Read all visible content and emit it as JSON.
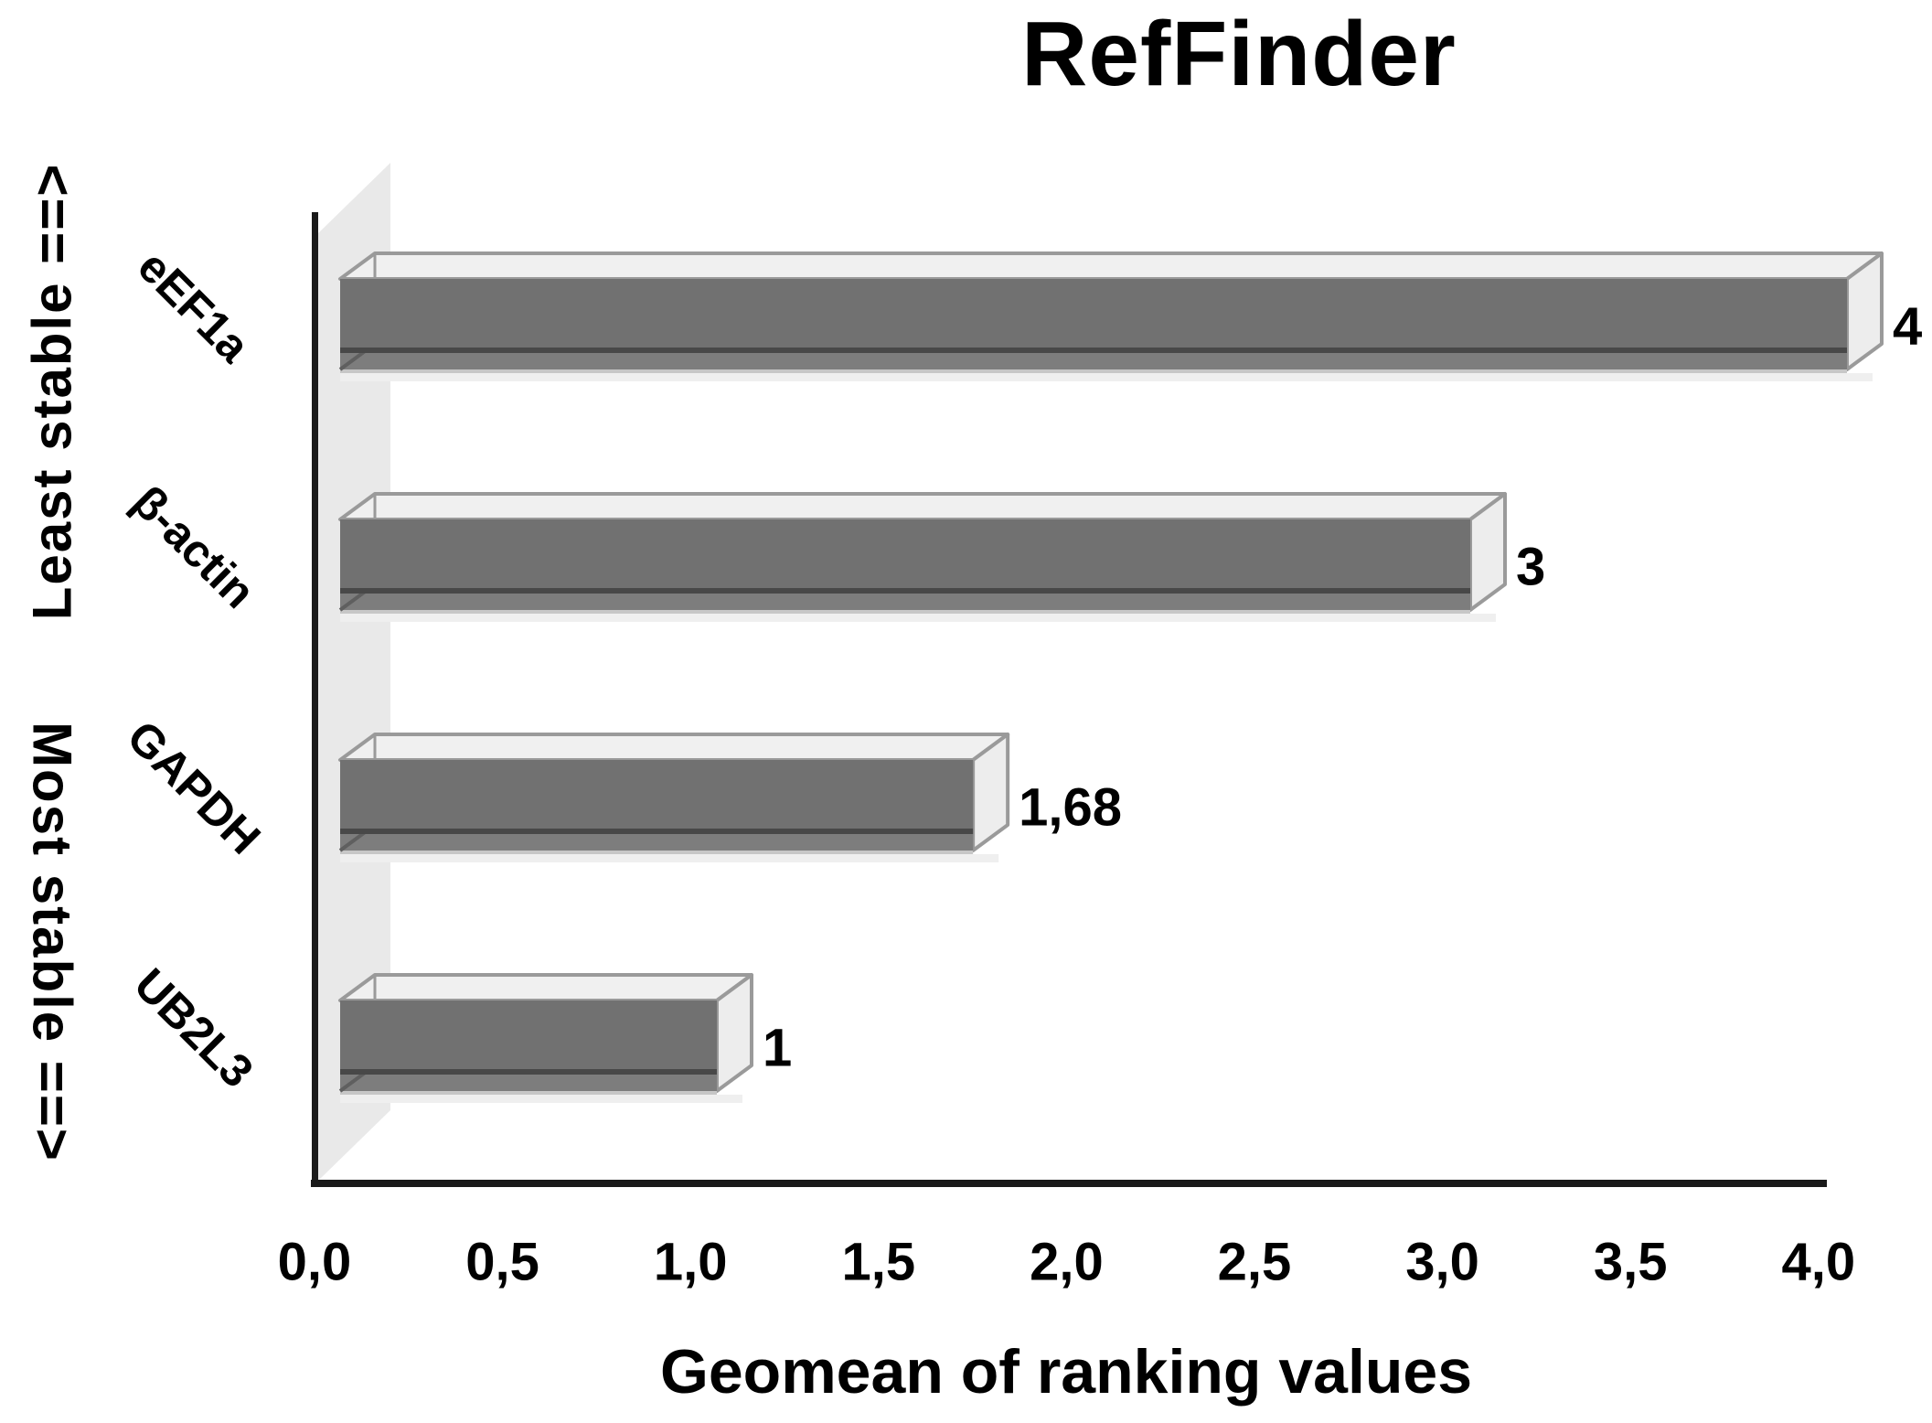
{
  "page": {
    "background": "#ffffff"
  },
  "chart_data": {
    "type": "bar",
    "orientation": "horizontal-3d",
    "title": "RefFinder",
    "categories": [
      "eEF1a",
      "β-actin",
      "GAPDH",
      "UB2L3"
    ],
    "values": [
      4,
      3,
      1.68,
      1
    ],
    "value_labels": [
      "4",
      "3",
      "1,68",
      "1"
    ],
    "xlabel": "Geomean of ranking values",
    "x_ticks": [
      "0,0",
      "0,5",
      "1,0",
      "1,5",
      "2,0",
      "2,5",
      "3,0",
      "3,5",
      "4,0"
    ],
    "xlim": [
      0,
      4
    ],
    "grid": false,
    "legend": false,
    "decimal_separator": ",",
    "stability_annotations": {
      "top": "Least stable  ==>",
      "bottom": "Most stable  ==>"
    },
    "colors": {
      "bar_front": "#717171",
      "bar_divider": "#484848",
      "bar_lower_strip": "#7d7d7d",
      "bar_strip_edge": "#c7c7c7",
      "bar_soft_shadow": "#efefef",
      "bar_top_face": "#f0f0f0",
      "bar_end_cap": "#ededed",
      "bar_outline": "#9a9a9a",
      "back_wall": "#e9e9e9",
      "axis": "#1a1a1a",
      "text": "#000000"
    }
  }
}
